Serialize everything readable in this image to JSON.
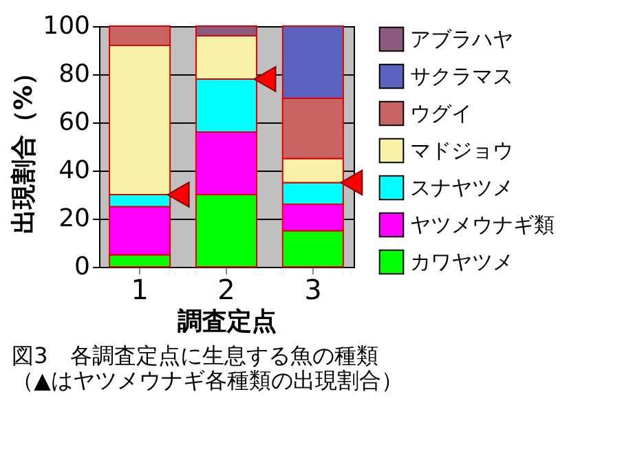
{
  "chart_data": {
    "type": "bar",
    "stacked": true,
    "xlabel": "調査定点",
    "ylabel": "出現割合（%）",
    "categories": [
      "1",
      "2",
      "3"
    ],
    "series": [
      {
        "name": "カワヤツメ",
        "color": "#00ff00",
        "values": [
          5,
          30,
          15
        ]
      },
      {
        "name": "ヤツメウナギ類",
        "color": "#ff00ff",
        "values": [
          20,
          26,
          11
        ]
      },
      {
        "name": "スナヤツメ",
        "color": "#00ffff",
        "values": [
          5,
          22,
          9
        ]
      },
      {
        "name": "マドジョウ",
        "color": "#f8f2a8",
        "values": [
          62,
          18,
          10
        ]
      },
      {
        "name": "ウグイ",
        "color": "#c86464",
        "values": [
          8,
          0,
          25
        ]
      },
      {
        "name": "サクラマス",
        "color": "#5a64c0",
        "values": [
          0,
          0,
          30
        ]
      },
      {
        "name": "アブラハヤ",
        "color": "#8a5a80",
        "values": [
          0,
          4,
          0
        ]
      },
      {
        "type": "scatter",
        "marker": "triangle",
        "color": "#ff0000",
        "values": [
          30,
          78,
          35
        ]
      }
    ],
    "ylim": [
      0,
      100
    ],
    "yticks": [
      0,
      20,
      40,
      60,
      80,
      100
    ],
    "grid": "y",
    "legend": "right",
    "annotations": [
      "図3　各調査定点に生息する魚の種類",
      "（▲はヤツメウナギ各種類の出現割合）"
    ]
  }
}
